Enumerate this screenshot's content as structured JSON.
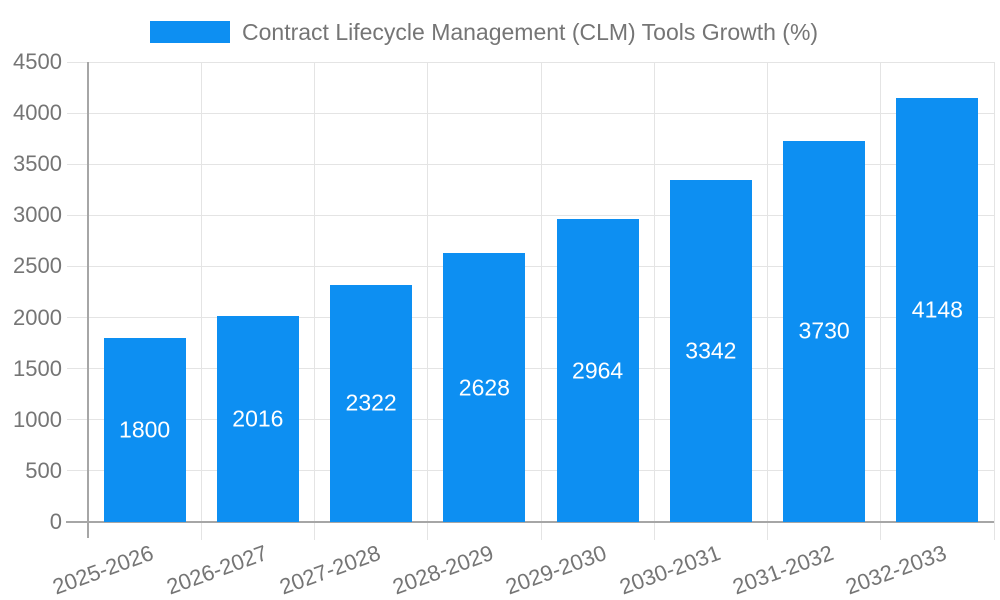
{
  "legend": {
    "label": "Contract Lifecycle Management (CLM) Tools Growth (%)"
  },
  "chart_data": {
    "type": "bar",
    "title": "Contract Lifecycle Management (CLM) Tools Growth (%)",
    "series_name": "Contract Lifecycle Management (CLM) Tools Growth (%)",
    "categories": [
      "2025-2026",
      "2026-2027",
      "2027-2028",
      "2028-2029",
      "2029-2030",
      "2030-2031",
      "2031-2032",
      "2032-2033"
    ],
    "values": [
      1800,
      2016,
      2322,
      2628,
      2964,
      3342,
      3730,
      4148
    ],
    "value_labels": [
      "1800",
      "2016",
      "2322",
      "2628",
      "2964",
      "3342",
      "3730",
      "4148"
    ],
    "xlabel": "",
    "ylabel": "",
    "ylim": [
      0,
      4500
    ],
    "ytick_step": 500,
    "yticks": [
      0,
      500,
      1000,
      1500,
      2000,
      2500,
      3000,
      3500,
      4000,
      4500
    ],
    "grid": true,
    "legend_position": "top",
    "colors": {
      "bar": "#0d8ff2",
      "value_label": "#ffffff",
      "grid": "#e4e4e4",
      "axis": "#a6a6a6",
      "tick_text": "#757575",
      "background": "#ffffff"
    }
  }
}
